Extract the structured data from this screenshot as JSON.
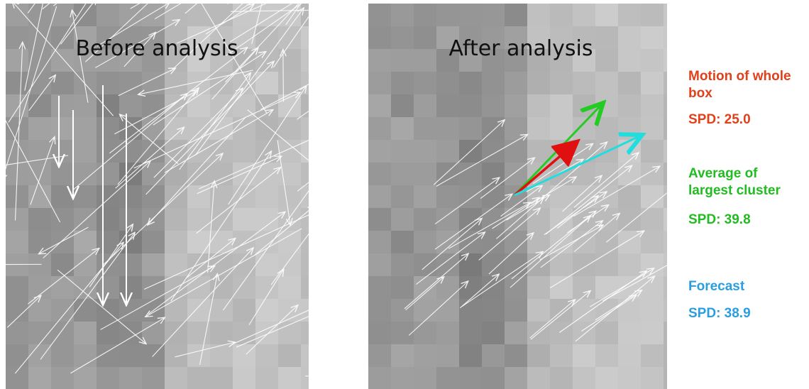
{
  "panels": [
    {
      "title": "Before analysis"
    },
    {
      "title": "After analysis"
    }
  ],
  "legend": [
    {
      "label": "Motion of whole box",
      "spd": "SPD: 25.0"
    },
    {
      "label": "Average of largest cluster",
      "spd": "SPD: 39.8"
    },
    {
      "label": "Forecast",
      "spd": "SPD: 38.9"
    }
  ]
}
